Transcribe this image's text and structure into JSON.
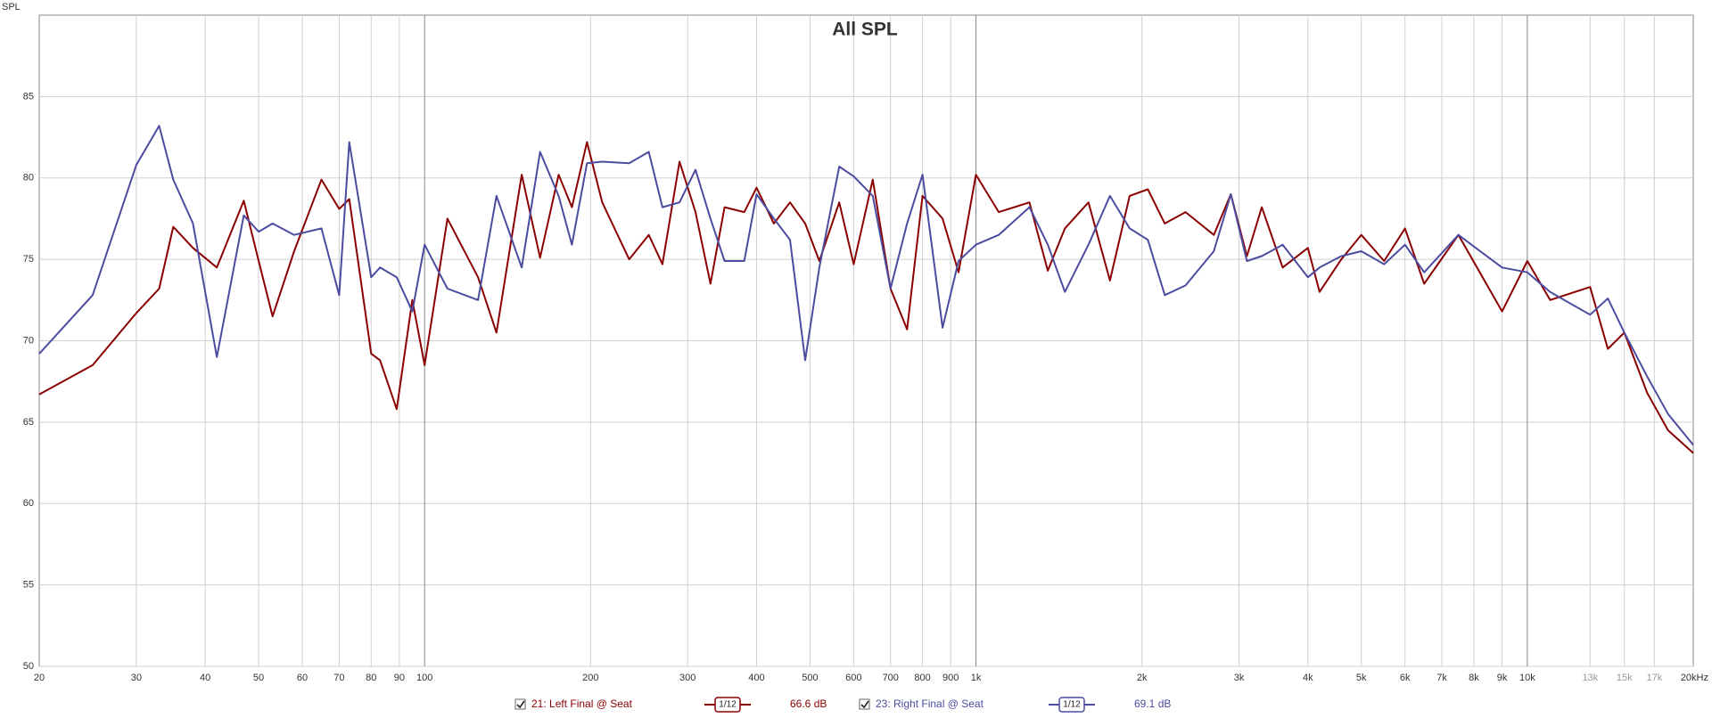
{
  "chart_data": {
    "type": "line",
    "title": "All SPL",
    "ylabel": "SPL",
    "xscale": "log",
    "grid": true,
    "xlim": [
      20,
      20000
    ],
    "ylim": [
      50,
      90
    ],
    "yticks": [
      50,
      55,
      60,
      65,
      70,
      75,
      80,
      85
    ],
    "xticks": [
      20,
      30,
      40,
      50,
      60,
      70,
      80,
      90,
      100,
      200,
      300,
      400,
      500,
      600,
      700,
      800,
      900,
      {
        "value": 1000,
        "label": "1k"
      },
      {
        "value": 2000,
        "label": "2k"
      },
      {
        "value": 3000,
        "label": "3k"
      },
      {
        "value": 4000,
        "label": "4k"
      },
      {
        "value": 5000,
        "label": "5k"
      },
      {
        "value": 6000,
        "label": "6k"
      },
      {
        "value": 7000,
        "label": "7k"
      },
      {
        "value": 8000,
        "label": "8k"
      },
      {
        "value": 9000,
        "label": "9k"
      },
      {
        "value": 10000,
        "label": "10k"
      },
      {
        "value": 13000,
        "label": "13k"
      },
      {
        "value": 15000,
        "label": "15k"
      },
      {
        "value": 17000,
        "label": "17k"
      },
      {
        "value": 20000,
        "label": "20kHz"
      }
    ],
    "x": [
      20,
      25,
      30,
      33,
      35,
      38,
      42,
      47,
      50,
      53,
      58,
      65,
      70,
      73,
      80,
      83,
      89,
      95,
      100,
      110,
      125,
      135,
      150,
      162,
      175,
      185,
      197,
      210,
      235,
      255,
      270,
      290,
      310,
      330,
      350,
      380,
      400,
      430,
      460,
      490,
      520,
      565,
      600,
      650,
      700,
      750,
      800,
      870,
      930,
      1000,
      1100,
      1250,
      1350,
      1450,
      1600,
      1750,
      1900,
      2050,
      2200,
      2400,
      2700,
      2900,
      3100,
      3300,
      3600,
      4000,
      4200,
      4600,
      5000,
      5500,
      6000,
      6500,
      7500,
      9000,
      10000,
      11000,
      13000,
      14000,
      15000,
      16500,
      18000,
      20000
    ],
    "series": [
      {
        "name": "21: Left Final @ Seat",
        "color": "#8b0000",
        "smoothing": "1/12",
        "cursor_value": "66.6 dB",
        "values": [
          66.7,
          68.5,
          71.7,
          73.2,
          77,
          75.7,
          74.5,
          78.6,
          74.9,
          71.5,
          75.5,
          79.9,
          78.1,
          78.7,
          69.2,
          68.8,
          65.8,
          72.5,
          68.5,
          77.5,
          73.9,
          70.5,
          80.2,
          75.1,
          80.2,
          78.2,
          82.2,
          78.5,
          75,
          76.5,
          74.7,
          81,
          77.9,
          73.5,
          78.2,
          77.9,
          79.4,
          77.2,
          78.5,
          77.2,
          74.9,
          78.5,
          74.7,
          79.9,
          73.2,
          70.7,
          78.9,
          77.5,
          74.2,
          80.2,
          77.9,
          78.5,
          74.3,
          76.9,
          78.5,
          73.7,
          78.9,
          79.3,
          77.2,
          77.9,
          76.5,
          79,
          75.2,
          78.2,
          74.5,
          75.7,
          73,
          75,
          76.5,
          74.9,
          76.9,
          73.5,
          76.5,
          71.8,
          74.9,
          72.5,
          73.3,
          69.5,
          70.5,
          66.8,
          64.5,
          63.1
        ]
      },
      {
        "name": "23: Right Final @ Seat",
        "color": "#4b4ba0",
        "smoothing": "1/12",
        "cursor_value": "69.1 dB",
        "values": [
          69.2,
          72.8,
          80.8,
          83.2,
          79.9,
          77.2,
          69,
          77.7,
          76.7,
          77.2,
          76.5,
          76.9,
          72.8,
          82.2,
          73.9,
          74.5,
          73.9,
          71.8,
          75.9,
          73.2,
          72.5,
          78.9,
          74.5,
          81.6,
          78.9,
          75.9,
          80.9,
          81,
          80.9,
          81.6,
          78.2,
          78.5,
          80.5,
          77.5,
          74.9,
          74.9,
          79,
          77.5,
          76.2,
          68.8,
          74.5,
          80.7,
          80.1,
          78.9,
          73.2,
          77.2,
          80.2,
          70.8,
          74.9,
          75.9,
          76.5,
          78.2,
          75.9,
          73,
          75.9,
          78.9,
          76.9,
          76.2,
          72.8,
          73.4,
          75.5,
          79,
          74.9,
          75.2,
          75.9,
          73.9,
          74.5,
          75.2,
          75.5,
          74.7,
          75.9,
          74.2,
          76.5,
          74.5,
          74.2,
          73,
          71.6,
          72.6,
          70.5,
          67.8,
          65.5,
          63.6
        ]
      }
    ]
  }
}
